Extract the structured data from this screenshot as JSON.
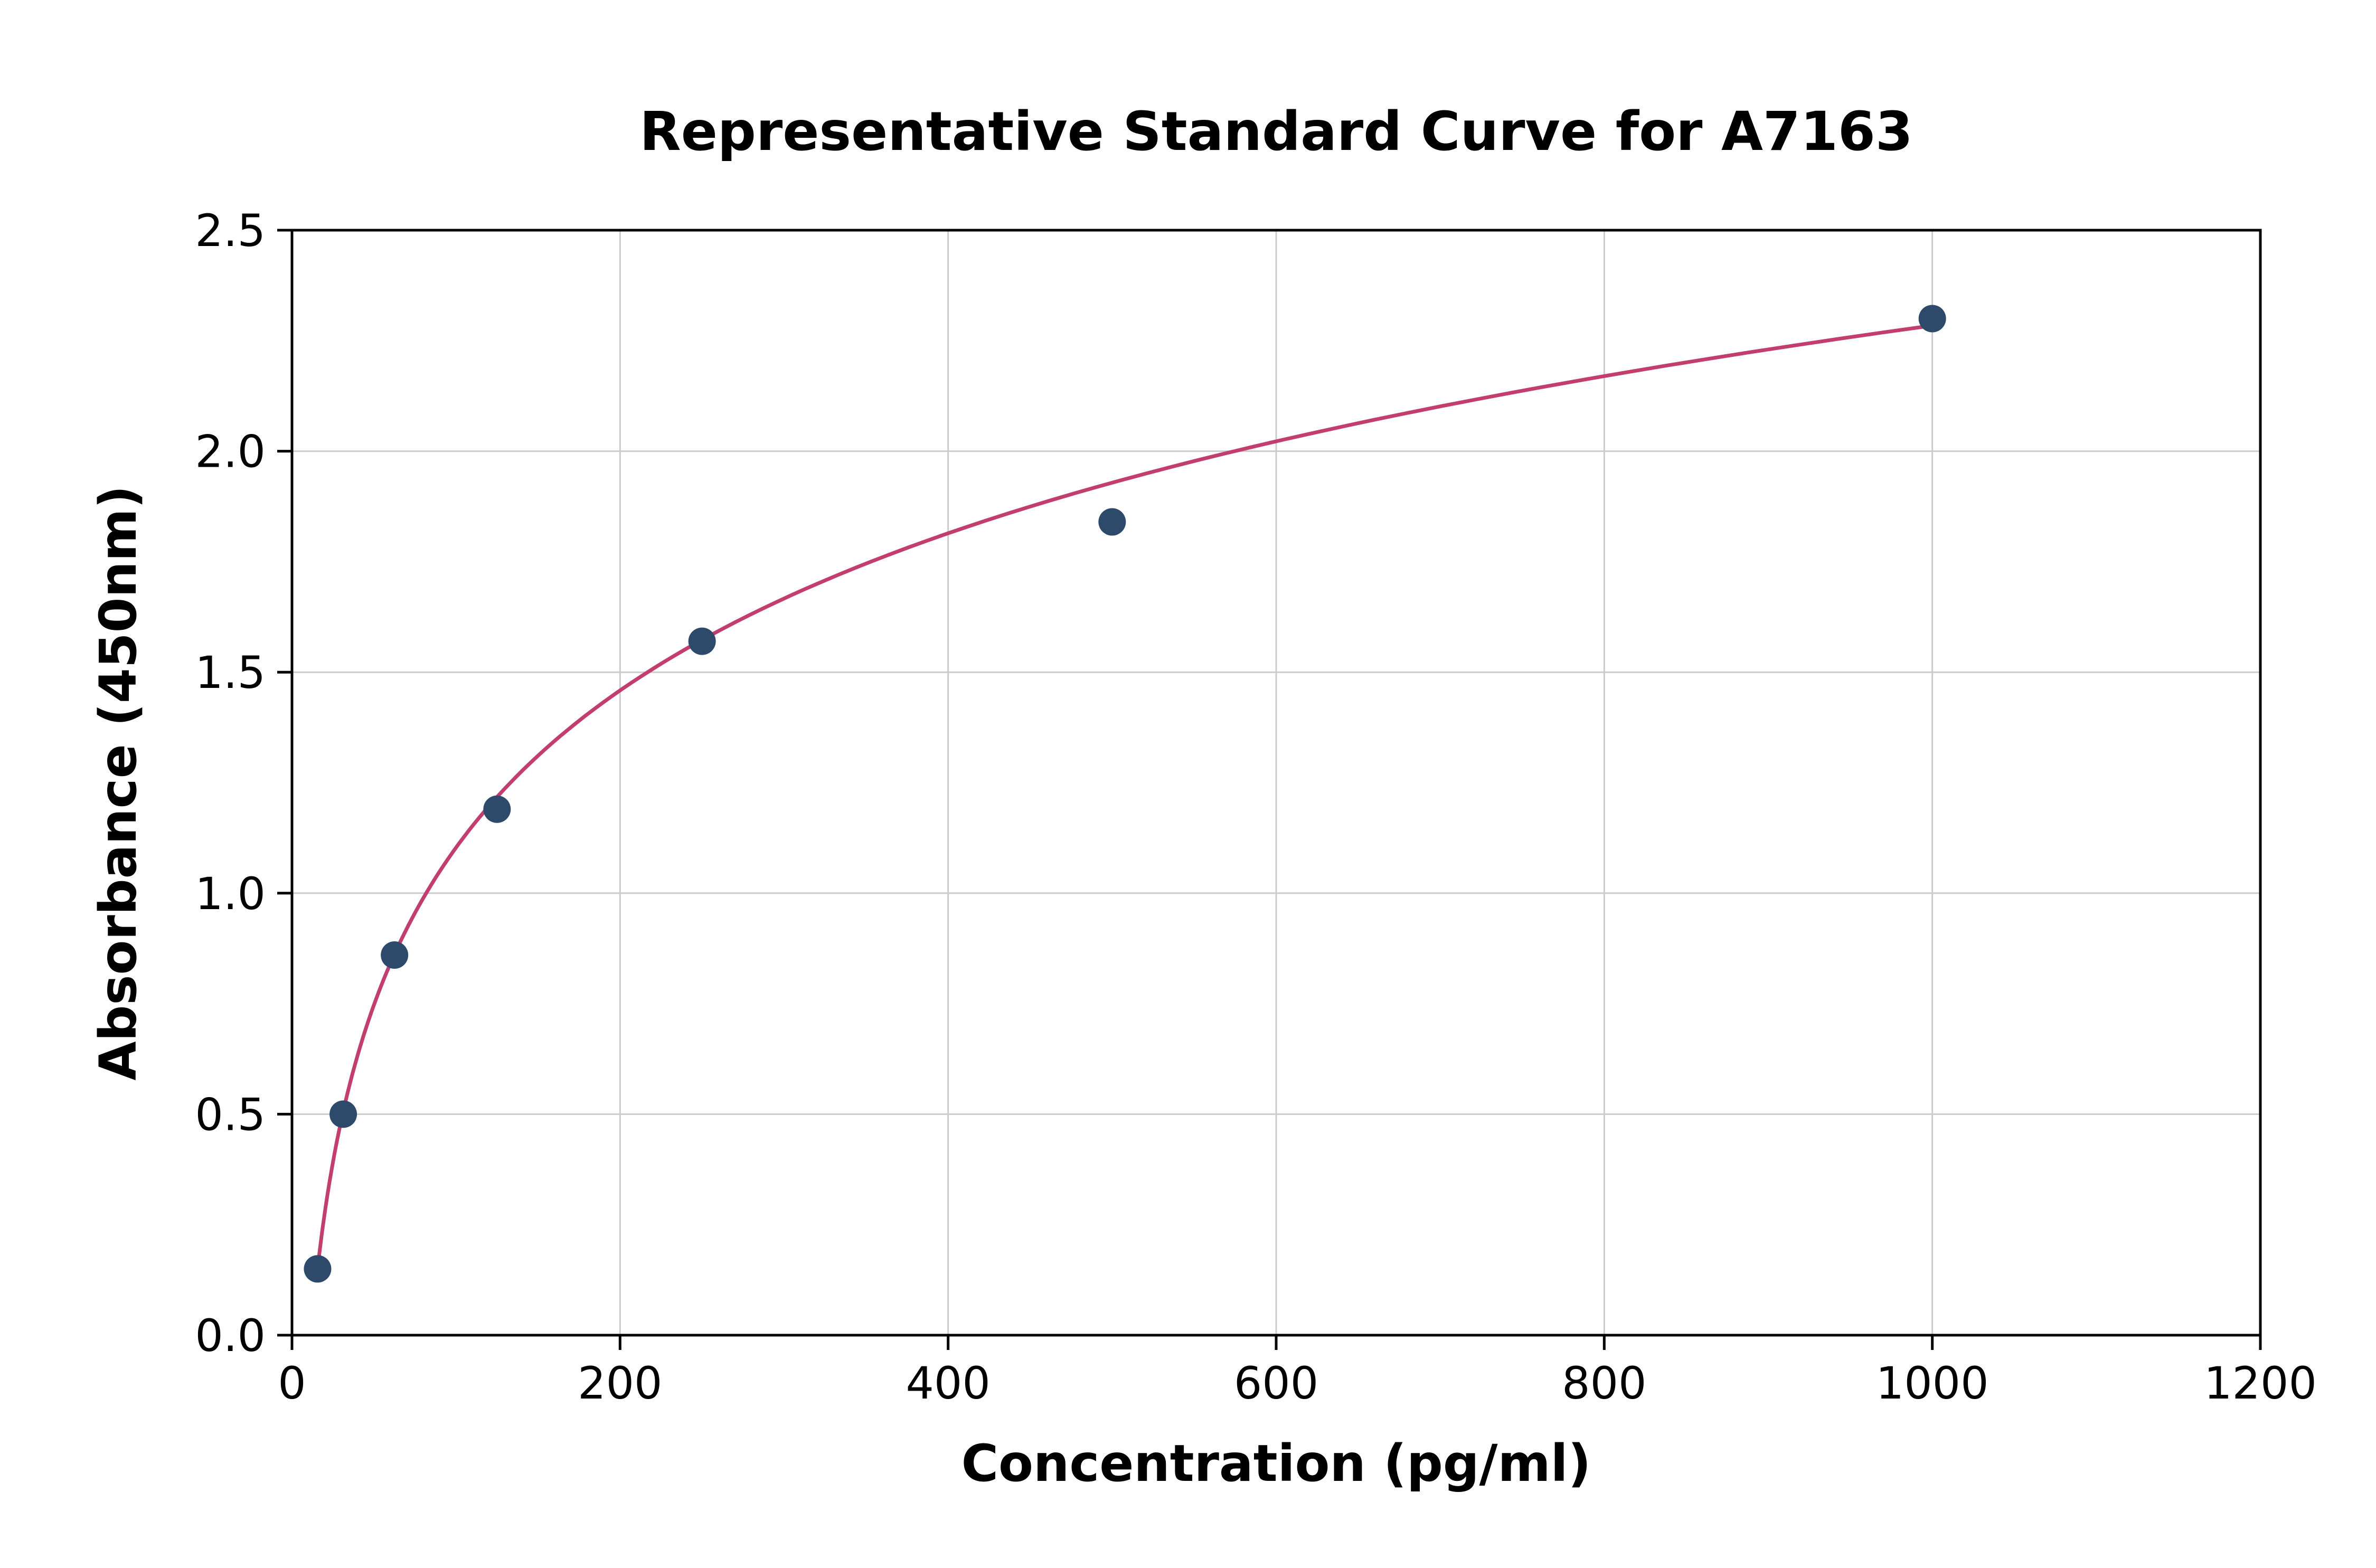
{
  "chart_data": {
    "type": "scatter",
    "title": "Representative Standard Curve for A7163",
    "xlabel": "Concentration (pg/ml)",
    "ylabel": "Absorbance (450nm)",
    "xlim": [
      0,
      1200
    ],
    "ylim": [
      0,
      2.5
    ],
    "xticks": [
      0,
      200,
      400,
      600,
      800,
      1000,
      1200
    ],
    "xticklabels": [
      "0",
      "200",
      "400",
      "600",
      "800",
      "1000",
      "1200"
    ],
    "yticks": [
      0.0,
      0.5,
      1.0,
      1.5,
      2.0,
      2.5
    ],
    "yticklabels": [
      "0.0",
      "0.5",
      "1.0",
      "1.5",
      "2.0",
      "2.5"
    ],
    "grid": true,
    "legend": "none",
    "points": {
      "x": [
        15.6,
        31.25,
        62.5,
        125,
        250,
        500,
        1000
      ],
      "y": [
        0.15,
        0.5,
        0.86,
        1.19,
        1.57,
        1.84,
        2.3
      ]
    },
    "fit_curve": {
      "type": "logarithmic",
      "a": 0.15,
      "b": 0.513,
      "x0": 15.6,
      "x_range": [
        15.6,
        1000
      ]
    },
    "colors": {
      "marker": "#2e4a6b",
      "line": "#c13e6e",
      "grid": "#cccccc",
      "spine": "#000000",
      "text": "#000000",
      "background": "#ffffff"
    }
  }
}
